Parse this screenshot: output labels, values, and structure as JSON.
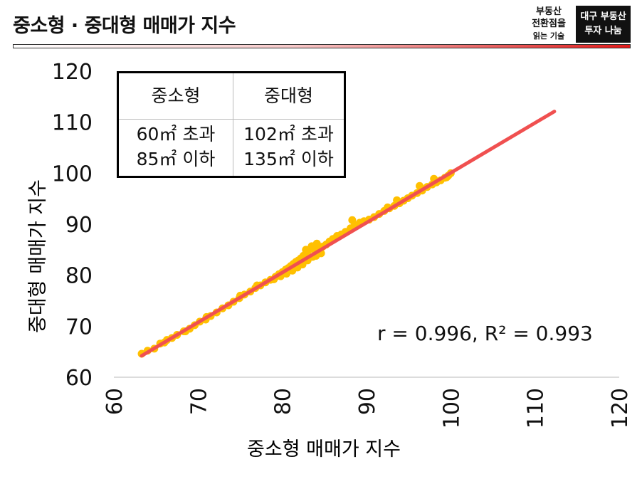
{
  "header": {
    "title": "중소형 · 중대형 매매가 지수",
    "logo_left_lines": [
      "부동산",
      "전환점을",
      "읽는 기술"
    ],
    "logo_right_lines": [
      "대구 부동산",
      "투자 나눔"
    ]
  },
  "legend_table": {
    "col1_header": "중소형",
    "col2_header": "중대형",
    "col1_lines": [
      "60㎡ 초과",
      "85㎡ 이하"
    ],
    "col2_lines": [
      "102㎡ 초과",
      "135㎡ 이하"
    ]
  },
  "stats_text": "r = 0.996, R² = 0.993",
  "colors": {
    "points": "#FFC000",
    "trendline": "#F05050",
    "accent": "#E01A1A"
  },
  "chart_data": {
    "type": "scatter",
    "xlabel": "중소형 매매가 지수",
    "ylabel": "중대형 매매가 지수",
    "xlim": [
      60,
      120
    ],
    "ylim": [
      60,
      120
    ],
    "x_ticks": [
      "60",
      "70",
      "80",
      "90",
      "100",
      "110",
      "120"
    ],
    "y_ticks": [
      "60",
      "70",
      "80",
      "90",
      "100",
      "110",
      "120"
    ],
    "grid": false,
    "trendline": {
      "x": [
        63.3,
        112.3
      ],
      "y": [
        64.2,
        112.1
      ]
    },
    "points": [
      [
        63.3,
        64.6
      ],
      [
        64.0,
        65.2
      ],
      [
        64.8,
        65.6
      ],
      [
        65.5,
        66.6
      ],
      [
        66.3,
        67.3
      ],
      [
        66.9,
        67.7
      ],
      [
        67.5,
        68.3
      ],
      [
        68.3,
        69.0
      ],
      [
        69.0,
        69.5
      ],
      [
        69.6,
        70.2
      ],
      [
        70.2,
        70.9
      ],
      [
        70.9,
        71.3
      ],
      [
        71.5,
        72.0
      ],
      [
        72.2,
        72.7
      ],
      [
        72.9,
        73.5
      ],
      [
        73.6,
        74.1
      ],
      [
        74.2,
        74.8
      ],
      [
        74.9,
        75.5
      ],
      [
        75.5,
        76.2
      ],
      [
        76.2,
        76.8
      ],
      [
        76.8,
        77.5
      ],
      [
        77.4,
        78.0
      ],
      [
        78.0,
        78.6
      ],
      [
        78.6,
        79.1
      ],
      [
        79.2,
        79.7
      ],
      [
        79.6,
        80.2
      ],
      [
        80.0,
        80.6
      ],
      [
        80.4,
        81.1
      ],
      [
        80.7,
        81.4
      ],
      [
        81.0,
        81.8
      ],
      [
        81.3,
        82.2
      ],
      [
        81.6,
        82.6
      ],
      [
        81.9,
        82.9
      ],
      [
        82.2,
        83.3
      ],
      [
        82.5,
        83.8
      ],
      [
        82.8,
        84.3
      ],
      [
        83.1,
        84.9
      ],
      [
        83.4,
        85.3
      ],
      [
        83.8,
        85.0
      ],
      [
        84.2,
        84.7
      ],
      [
        84.5,
        85.1
      ],
      [
        84.8,
        85.6
      ],
      [
        85.2,
        86.0
      ],
      [
        85.6,
        86.6
      ],
      [
        86.0,
        87.1
      ],
      [
        86.5,
        87.7
      ],
      [
        87.0,
        88.0
      ],
      [
        87.5,
        88.5
      ],
      [
        88.1,
        89.2
      ],
      [
        88.6,
        89.8
      ],
      [
        89.2,
        90.3
      ],
      [
        89.7,
        90.6
      ],
      [
        90.3,
        90.9
      ],
      [
        90.9,
        91.4
      ],
      [
        91.5,
        92.0
      ],
      [
        92.1,
        92.6
      ],
      [
        92.7,
        93.1
      ],
      [
        93.3,
        93.6
      ],
      [
        93.9,
        94.1
      ],
      [
        94.4,
        94.6
      ],
      [
        94.9,
        95.1
      ],
      [
        95.4,
        95.6
      ],
      [
        96.0,
        96.1
      ],
      [
        96.6,
        96.6
      ],
      [
        97.2,
        97.3
      ],
      [
        97.8,
        97.8
      ],
      [
        98.3,
        98.2
      ],
      [
        98.8,
        98.6
      ],
      [
        99.3,
        99.1
      ],
      [
        99.7,
        99.5
      ],
      [
        100.0,
        100.0
      ],
      [
        79.0,
        79.2
      ],
      [
        79.8,
        79.8
      ],
      [
        80.5,
        80.3
      ],
      [
        81.2,
        80.9
      ],
      [
        81.8,
        81.5
      ],
      [
        82.4,
        82.1
      ],
      [
        83.0,
        82.9
      ],
      [
        83.6,
        83.6
      ],
      [
        84.0,
        83.8
      ],
      [
        84.6,
        84.3
      ],
      [
        82.8,
        85.0
      ],
      [
        83.5,
        85.7
      ],
      [
        84.1,
        86.2
      ],
      [
        88.3,
        90.8
      ],
      [
        92.5,
        93.3
      ],
      [
        93.6,
        94.7
      ],
      [
        96.3,
        97.5
      ],
      [
        98.0,
        98.9
      ],
      [
        99.5,
        99.2
      ],
      [
        75.0,
        76.0
      ],
      [
        77.0,
        78.0
      ],
      [
        71.0,
        71.8
      ],
      [
        68.5,
        69.0
      ],
      [
        66.0,
        66.8
      ]
    ]
  }
}
